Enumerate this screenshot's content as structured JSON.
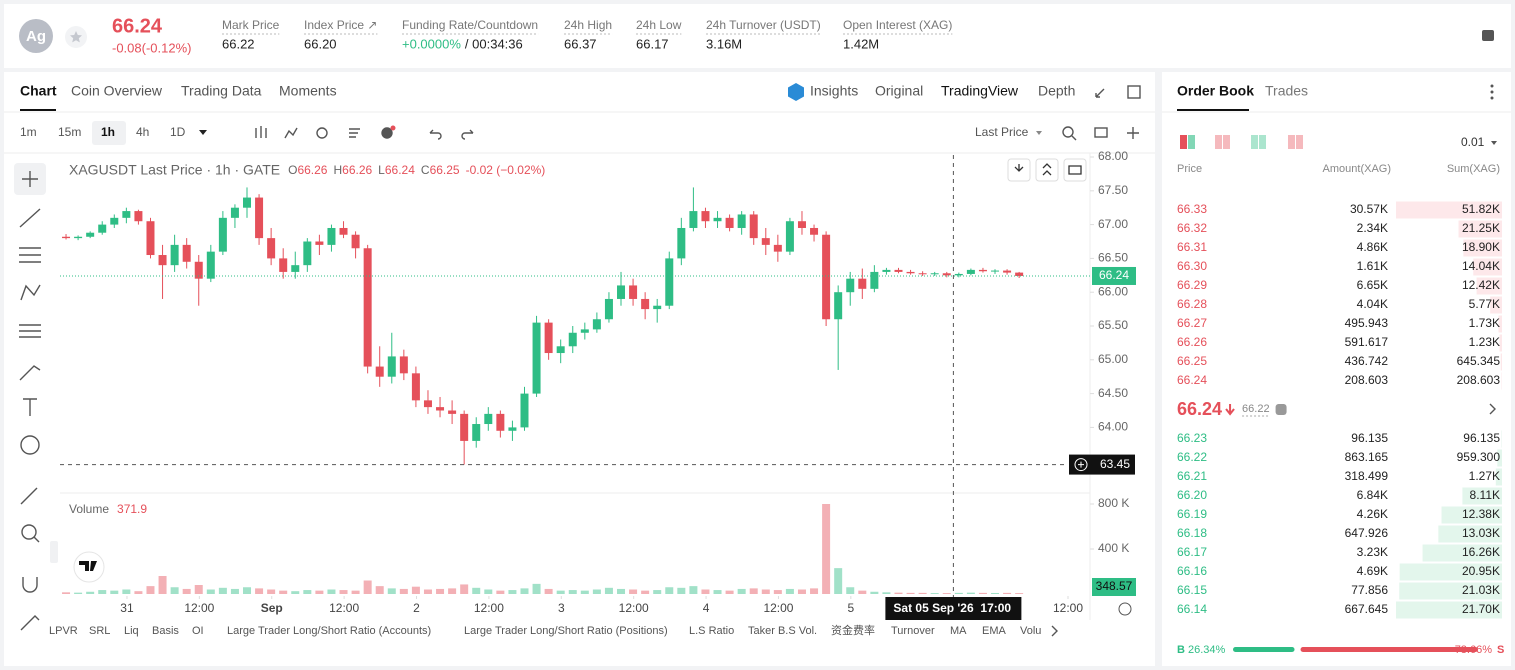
{
  "header": {
    "symbol": "Ag",
    "price": "66.24",
    "change": "-0.08(-0.12%)",
    "stats": [
      {
        "label": "Mark Price",
        "value": "66.22"
      },
      {
        "label": "Index Price ↗",
        "value": "66.20"
      },
      {
        "label": "Funding Rate/Countdown",
        "value": "+0.0000%",
        "value2": "/ 00:34:36"
      },
      {
        "label": "24h High",
        "value": "66.37"
      },
      {
        "label": "24h Low",
        "value": "66.17"
      },
      {
        "label": "24h Turnover (USDT)",
        "value": "3.16M"
      },
      {
        "label": "Open Interest (XAG)",
        "value": "1.42M"
      }
    ]
  },
  "chart_tabs": [
    "Chart",
    "Coin Overview",
    "Trading Data",
    "Moments"
  ],
  "view_tabs": [
    "Insights",
    "Original",
    "TradingView",
    "Depth"
  ],
  "intervals": [
    "1m",
    "15m",
    "1h",
    "4h",
    "1D"
  ],
  "price_source": "Last Price",
  "indicators": [
    "LPVR",
    "SRL",
    "Liq",
    "Basis",
    "OI",
    "Large Trader Long/Short Ratio (Accounts)",
    "Large Trader Long/Short Ratio (Positions)",
    "L.S Ratio",
    "Taker B.S Vol.",
    "资金费率",
    "Turnover",
    "MA",
    "EMA",
    "Volu"
  ],
  "chart_data": {
    "type": "candlestick",
    "title": "XAGUSDT Last Price · 1h · GATE",
    "ohlc_legend": [
      {
        "key": "O",
        "value": "66.26"
      },
      {
        "key": "H",
        "value": "66.26"
      },
      {
        "key": "L",
        "value": "66.24"
      },
      {
        "key": "C",
        "value": "66.25"
      }
    ],
    "change_legend": "-0.02 (−0.02%)",
    "colors": {
      "up": "#2ebd85",
      "down": "#e5505a"
    },
    "ylim": [
      63,
      68
    ],
    "yticks": [
      {
        "value": 64,
        "label": "64.00"
      },
      {
        "value": 64.5,
        "label": "64.50"
      },
      {
        "value": 65,
        "label": "65.00"
      },
      {
        "value": 65.5,
        "label": "65.50"
      },
      {
        "value": 66,
        "label": "66.00"
      },
      {
        "value": 66.5,
        "label": "66.50"
      },
      {
        "value": 67,
        "label": "67.00"
      },
      {
        "value": 67.5,
        "label": "67.50"
      },
      {
        "value": 68,
        "label": "68.00"
      }
    ],
    "xlim": [
      0,
      85
    ],
    "xticks": [
      {
        "value": 5.55,
        "label": "31"
      },
      {
        "value": 11.55,
        "label": "12:00"
      },
      {
        "value": 17.55,
        "label": "Sep"
      },
      {
        "value": 23.55,
        "label": "12:00"
      },
      {
        "value": 29.55,
        "label": "2"
      },
      {
        "value": 35.55,
        "label": "12:00"
      },
      {
        "value": 41.55,
        "label": "3"
      },
      {
        "value": 47.55,
        "label": "12:00"
      },
      {
        "value": 53.55,
        "label": "4"
      },
      {
        "value": 59.55,
        "label": "12:00"
      },
      {
        "value": 65.55,
        "label": "5"
      },
      {
        "value": 83.55,
        "label": "12:00"
      }
    ],
    "ohlc": [
      [
        66.82,
        66.86,
        66.78,
        66.8
      ],
      [
        66.8,
        66.84,
        66.77,
        66.82
      ],
      [
        66.82,
        66.9,
        66.8,
        66.88
      ],
      [
        66.88,
        67.05,
        66.85,
        67.0
      ],
      [
        67.0,
        67.15,
        66.95,
        67.1
      ],
      [
        67.1,
        67.25,
        67.02,
        67.2
      ],
      [
        67.2,
        67.22,
        67.0,
        67.05
      ],
      [
        67.05,
        67.1,
        66.5,
        66.55
      ],
      [
        66.55,
        66.7,
        65.9,
        66.4
      ],
      [
        66.4,
        66.85,
        66.3,
        66.7
      ],
      [
        66.7,
        66.8,
        66.35,
        66.45
      ],
      [
        66.45,
        66.55,
        65.8,
        66.2
      ],
      [
        66.2,
        66.7,
        66.15,
        66.6
      ],
      [
        66.6,
        67.2,
        66.55,
        67.1
      ],
      [
        67.1,
        67.3,
        66.95,
        67.25
      ],
      [
        67.25,
        67.55,
        67.1,
        67.4
      ],
      [
        67.4,
        67.45,
        66.7,
        66.8
      ],
      [
        66.8,
        66.95,
        66.4,
        66.5
      ],
      [
        66.5,
        66.65,
        66.2,
        66.3
      ],
      [
        66.3,
        66.6,
        66.2,
        66.4
      ],
      [
        66.4,
        66.8,
        66.3,
        66.75
      ],
      [
        66.75,
        66.85,
        66.55,
        66.7
      ],
      [
        66.7,
        67.0,
        66.6,
        66.95
      ],
      [
        66.95,
        67.05,
        66.8,
        66.85
      ],
      [
        66.85,
        66.9,
        66.5,
        66.65
      ],
      [
        66.65,
        66.7,
        64.8,
        64.9
      ],
      [
        64.9,
        65.2,
        64.6,
        64.75
      ],
      [
        64.75,
        65.4,
        64.65,
        65.05
      ],
      [
        65.05,
        65.15,
        64.7,
        64.8
      ],
      [
        64.8,
        64.9,
        64.3,
        64.4
      ],
      [
        64.4,
        64.55,
        64.2,
        64.3
      ],
      [
        64.3,
        64.45,
        64.15,
        64.25
      ],
      [
        64.25,
        64.4,
        64.05,
        64.2
      ],
      [
        64.2,
        64.25,
        63.45,
        63.8
      ],
      [
        63.8,
        64.15,
        63.7,
        64.05
      ],
      [
        64.05,
        64.3,
        63.95,
        64.2
      ],
      [
        64.2,
        64.25,
        63.85,
        63.95
      ],
      [
        63.95,
        64.1,
        63.8,
        64.0
      ],
      [
        64.0,
        64.6,
        63.95,
        64.5
      ],
      [
        64.5,
        65.65,
        64.45,
        65.55
      ],
      [
        65.55,
        65.6,
        65.0,
        65.1
      ],
      [
        65.1,
        65.3,
        64.95,
        65.2
      ],
      [
        65.2,
        65.5,
        65.1,
        65.4
      ],
      [
        65.4,
        65.55,
        65.3,
        65.45
      ],
      [
        65.45,
        65.7,
        65.4,
        65.6
      ],
      [
        65.6,
        66.0,
        65.55,
        65.9
      ],
      [
        65.9,
        66.3,
        65.8,
        66.1
      ],
      [
        66.1,
        66.2,
        65.8,
        65.9
      ],
      [
        65.9,
        66.0,
        65.6,
        65.75
      ],
      [
        65.75,
        65.9,
        65.55,
        65.8
      ],
      [
        65.8,
        66.6,
        65.75,
        66.5
      ],
      [
        66.5,
        67.1,
        66.4,
        66.95
      ],
      [
        66.95,
        67.55,
        66.9,
        67.2
      ],
      [
        67.2,
        67.25,
        66.95,
        67.05
      ],
      [
        67.05,
        67.2,
        66.95,
        67.1
      ],
      [
        67.1,
        67.15,
        66.9,
        66.95
      ],
      [
        66.95,
        67.2,
        66.85,
        67.15
      ],
      [
        67.15,
        67.2,
        66.7,
        66.8
      ],
      [
        66.8,
        66.95,
        66.55,
        66.7
      ],
      [
        66.7,
        66.85,
        66.45,
        66.6
      ],
      [
        66.6,
        67.1,
        66.55,
        67.05
      ],
      [
        67.05,
        67.2,
        66.85,
        66.95
      ],
      [
        66.95,
        67.0,
        66.75,
        66.85
      ],
      [
        66.85,
        66.9,
        65.5,
        65.6
      ],
      [
        65.6,
        66.1,
        64.85,
        66.0
      ],
      [
        66.0,
        66.3,
        65.8,
        66.2
      ],
      [
        66.2,
        66.35,
        65.9,
        66.05
      ],
      [
        66.05,
        66.4,
        66.0,
        66.3
      ],
      [
        66.3,
        66.36,
        66.26,
        66.33
      ],
      [
        66.33,
        66.36,
        66.28,
        66.3
      ],
      [
        66.3,
        66.33,
        66.26,
        66.28
      ],
      [
        66.28,
        66.31,
        66.24,
        66.27
      ],
      [
        66.27,
        66.3,
        66.24,
        66.28
      ],
      [
        66.28,
        66.3,
        66.22,
        66.25
      ],
      [
        66.25,
        66.29,
        66.22,
        66.27
      ],
      [
        66.27,
        66.35,
        66.25,
        66.33
      ],
      [
        66.33,
        66.36,
        66.29,
        66.31
      ],
      [
        66.31,
        66.34,
        66.27,
        66.32
      ],
      [
        66.32,
        66.34,
        66.26,
        66.29
      ],
      [
        66.29,
        66.3,
        66.21,
        66.24
      ]
    ],
    "volumes": [
      15,
      12,
      20,
      35,
      30,
      40,
      25,
      70,
      160,
      60,
      45,
      80,
      40,
      55,
      45,
      60,
      50,
      40,
      30,
      25,
      35,
      30,
      40,
      35,
      30,
      120,
      70,
      50,
      45,
      65,
      40,
      45,
      50,
      85,
      55,
      40,
      30,
      35,
      50,
      90,
      45,
      30,
      35,
      30,
      40,
      55,
      45,
      40,
      30,
      35,
      60,
      55,
      70,
      40,
      35,
      30,
      45,
      50,
      40,
      35,
      45,
      40,
      50,
      800,
      230,
      60,
      30,
      20,
      15,
      12,
      10,
      10,
      8,
      8,
      10,
      12,
      10,
      9,
      10,
      8
    ],
    "volume_label": "Volume",
    "volume_value": "371.9",
    "volume_ylim": [
      0,
      880
    ],
    "volume_yticks": [
      {
        "value": 400,
        "label": "400 K"
      },
      {
        "value": 800,
        "label": "800 K"
      }
    ],
    "last_price": 66.24,
    "crosshair_price": 63.45,
    "last_volume_label": "348.57",
    "crosshair_x": 74.05,
    "crosshair_date": "Sat 05 Sep '26",
    "crosshair_time": "17:00"
  },
  "order_book": {
    "tabs": [
      "Order Book",
      "Trades"
    ],
    "precision": "0.01",
    "columns": [
      "Price",
      "Amount(XAG)",
      "Sum(XAG)"
    ],
    "asks": {
      "prices": [
        "66.33",
        "66.32",
        "66.31",
        "66.30",
        "66.29",
        "66.28",
        "66.27",
        "66.26",
        "66.25",
        "66.24"
      ],
      "amounts": [
        "30.57K",
        "2.34K",
        "4.86K",
        "1.61K",
        "6.65K",
        "4.04K",
        "495.943",
        "591.617",
        "436.742",
        "208.603"
      ],
      "sums": [
        51820,
        21250,
        18900,
        14040,
        12420,
        5770,
        1730,
        1230,
        645.345,
        208.603
      ],
      "sum_labels": [
        "51.82K",
        "21.25K",
        "18.90K",
        "14.04K",
        "12.42K",
        "5.77K",
        "1.73K",
        "1.23K",
        "645.345",
        "208.603"
      ]
    },
    "mid_price": "66.24",
    "mark_price": "66.22",
    "bids": {
      "prices": [
        "66.23",
        "66.22",
        "66.21",
        "66.20",
        "66.19",
        "66.18",
        "66.17",
        "66.16",
        "66.15",
        "66.14"
      ],
      "amounts": [
        "96.135",
        "863.165",
        "318.499",
        "6.84K",
        "4.26K",
        "647.926",
        "3.23K",
        "4.69K",
        "77.856",
        "667.645"
      ],
      "sums": [
        96.135,
        959.3,
        1270,
        8110,
        12380,
        13030,
        16260,
        20950,
        21030,
        21700
      ],
      "sum_labels": [
        "96.135",
        "959.300",
        "1.27K",
        "8.11K",
        "12.38K",
        "13.03K",
        "16.26K",
        "20.95K",
        "21.03K",
        "21.70K"
      ]
    },
    "ratio": {
      "buy_key": "B",
      "sell_key": "S",
      "buy": 26.34,
      "sell": 73.66,
      "buy_label": "26.34%",
      "sell_label": "73.66%"
    }
  }
}
